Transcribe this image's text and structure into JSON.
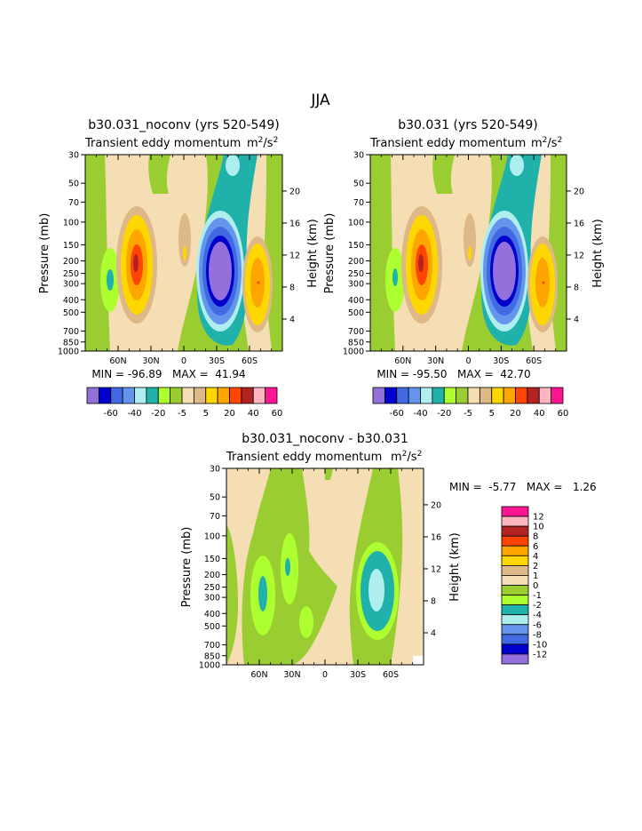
{
  "page_title": "JJA",
  "palette": [
    "#9370db",
    "#0000cd",
    "#4169e1",
    "#6495ed",
    "#afeeee",
    "#20b2aa",
    "#adff2f",
    "#9acd32",
    "#f5deb3",
    "#deb887",
    "#ffd700",
    "#ffa500",
    "#ff4500",
    "#b22222",
    "#ffb6c1",
    "#ff1493"
  ],
  "full_colorbar_labels": [
    "-60",
    "-40",
    "-20",
    "-5",
    "5",
    "20",
    "40",
    "60"
  ],
  "diff_colorbar_labels": [
    "12",
    "10",
    "8",
    "6",
    "4",
    "2",
    "1",
    "0",
    "-1",
    "-2",
    "-4",
    "-6",
    "-8",
    "-10",
    "-12"
  ],
  "diff_colors_top_down": [
    "#ff1493",
    "#ffb6c1",
    "#b22222",
    "#ff4500",
    "#ffa500",
    "#ffd700",
    "#deb887",
    "#f5deb3",
    "#9acd32",
    "#adff2f",
    "#20b2aa",
    "#afeeee",
    "#6495ed",
    "#4169e1",
    "#0000cd",
    "#9370db"
  ],
  "chart_data": [
    {
      "type": "heatmap",
      "panel": "left",
      "title": "b30.031_noconv (yrs 520-549)",
      "subtitle_left": "Transient eddy momentum",
      "units": "m2/s2",
      "ylabel": "Pressure (mb)",
      "ylabel_right": "Height (km)",
      "pressure_ticks": [
        "30",
        "50",
        "70",
        "100",
        "150",
        "200",
        "250",
        "300",
        "400",
        "500",
        "700",
        "850",
        "1000"
      ],
      "height_ticks": [
        "20",
        "16",
        "12",
        "8",
        "4"
      ],
      "x_ticks": [
        "60N",
        "30N",
        "0",
        "30S",
        "60S"
      ],
      "stats": "MIN = -96.89   MAX =  41.94",
      "min": -96.89,
      "max": 41.94
    },
    {
      "type": "heatmap",
      "panel": "right",
      "title": "b30.031 (yrs 520-549)",
      "subtitle_left": "Transient eddy momentum",
      "units": "m2/s2",
      "ylabel": "Pressure (mb)",
      "ylabel_right": "Height (km)",
      "pressure_ticks": [
        "30",
        "50",
        "70",
        "100",
        "150",
        "200",
        "250",
        "300",
        "400",
        "500",
        "700",
        "850",
        "1000"
      ],
      "height_ticks": [
        "20",
        "16",
        "12",
        "8",
        "4"
      ],
      "x_ticks": [
        "60N",
        "30N",
        "0",
        "30S",
        "60S"
      ],
      "stats": "MIN = -95.50   MAX =  42.70",
      "min": -95.5,
      "max": 42.7
    },
    {
      "type": "heatmap",
      "panel": "difference",
      "title": "b30.031_noconv - b30.031",
      "subtitle_left": "Transient eddy momentum",
      "units": "m2/s2",
      "ylabel": "Pressure (mb)",
      "ylabel_right": "Height (km)",
      "pressure_ticks": [
        "30",
        "50",
        "70",
        "100",
        "150",
        "200",
        "250",
        "300",
        "400",
        "500",
        "700",
        "850",
        "1000"
      ],
      "height_ticks": [
        "20",
        "16",
        "12",
        "8",
        "4"
      ],
      "x_ticks": [
        "60N",
        "30N",
        "0",
        "30S",
        "60S"
      ],
      "stats": "MIN =  -5.77   MAX =   1.26",
      "min": -5.77,
      "max": 1.26
    }
  ]
}
